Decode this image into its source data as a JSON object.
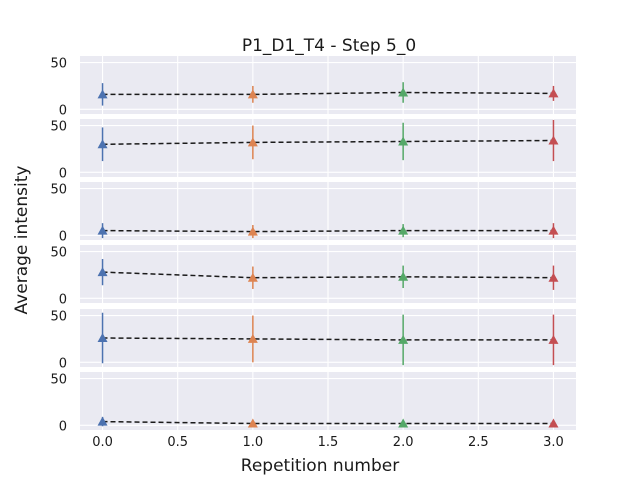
{
  "chart_data": {
    "type": "line",
    "title": "P1_D1_T4 - Step 5_0",
    "xlabel": "Repetition number",
    "ylabel": "Average intensity",
    "x_ticks": [
      "0.0",
      "0.5",
      "1.0",
      "1.5",
      "2.0",
      "2.5",
      "3.0"
    ],
    "x_tick_values": [
      0,
      0.5,
      1,
      1.5,
      2,
      2.5,
      3
    ],
    "xlim": [
      -0.15,
      3.15
    ],
    "y_ticks": [
      "0",
      "50"
    ],
    "y_tick_values": [
      0,
      50
    ],
    "ylim": [
      -5,
      57
    ],
    "x": [
      0,
      1,
      2,
      3
    ],
    "point_colors": [
      "#4c72b0",
      "#dd8452",
      "#55a868",
      "#c44e52"
    ],
    "marker": "triangle",
    "line_style": "dashed",
    "line_color": "#1a1a1a",
    "grid": true,
    "background": "#eaeaf2",
    "subplots": [
      {
        "values": [
          16,
          16,
          18,
          17
        ],
        "errors": [
          12,
          9,
          11,
          8
        ]
      },
      {
        "values": [
          30,
          32,
          33,
          34
        ],
        "errors": [
          18,
          18,
          20,
          22
        ]
      },
      {
        "values": [
          5,
          4,
          5,
          5
        ],
        "errors": [
          8,
          7,
          7,
          8
        ]
      },
      {
        "values": [
          28,
          22,
          23,
          22
        ],
        "errors": [
          14,
          12,
          12,
          13
        ]
      },
      {
        "values": [
          26,
          25,
          24,
          24
        ],
        "errors": [
          27,
          25,
          27,
          27
        ]
      },
      {
        "values": [
          4,
          2,
          2,
          2
        ],
        "errors": [
          5,
          3,
          3,
          3
        ]
      }
    ]
  }
}
